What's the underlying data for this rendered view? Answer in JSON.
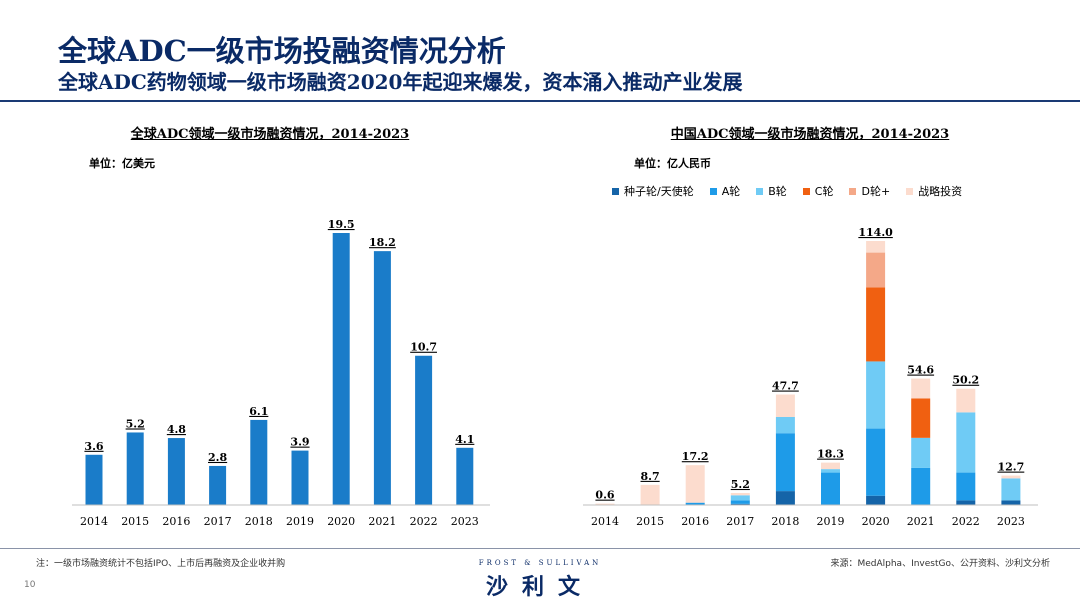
{
  "header": {
    "title": "全球ADC一级市场投融资情况分析",
    "subtitle": "全球ADC药物领域一级市场融资2020年起迎来爆发，资本涌入推动产业发展"
  },
  "chart_data": [
    {
      "type": "bar",
      "title": "全球ADC领域一级市场融资情况，2014-2023",
      "unit": "单位：亿美元",
      "categories": [
        "2014",
        "2015",
        "2016",
        "2017",
        "2018",
        "2019",
        "2020",
        "2021",
        "2022",
        "2023"
      ],
      "values": [
        3.6,
        5.2,
        4.8,
        2.8,
        6.1,
        3.9,
        19.5,
        18.2,
        10.7,
        4.1
      ],
      "color": "#1a7cc9",
      "legend": "none",
      "grid": false
    },
    {
      "type": "bar",
      "stacked": true,
      "title": "中国ADC领域一级市场融资情况，2014-2023",
      "unit": "单位：亿人民币",
      "categories": [
        "2014",
        "2015",
        "2016",
        "2017",
        "2018",
        "2019",
        "2020",
        "2021",
        "2022",
        "2023"
      ],
      "totals": [
        0.6,
        8.7,
        17.2,
        5.2,
        47.7,
        18.3,
        114.0,
        54.6,
        50.2,
        12.7
      ],
      "total_labels": [
        "0.6",
        "8.7",
        "17.2",
        "5.2",
        "47.7",
        "18.3",
        "114.0",
        "54.6",
        "50.2",
        "12.7"
      ],
      "series": [
        {
          "name": "种子轮/天使轮",
          "color": "#1564a8",
          "values": [
            0,
            0,
            0,
            0.5,
            6.0,
            0,
            4.0,
            0,
            2.0,
            2.0
          ]
        },
        {
          "name": "A轮",
          "color": "#1e9be8",
          "values": [
            0,
            0,
            1.0,
            1.5,
            25.0,
            14.0,
            29.0,
            16.0,
            12.0,
            0
          ]
        },
        {
          "name": "B轮",
          "color": "#6fcbf5",
          "values": [
            0,
            0,
            0,
            2.2,
            7.0,
            1.5,
            29.0,
            13.0,
            26.0,
            9.5
          ]
        },
        {
          "name": "C轮",
          "color": "#f06011",
          "values": [
            0,
            0,
            0,
            0,
            0,
            0,
            32.0,
            17.0,
            0,
            0
          ]
        },
        {
          "name": "D轮+",
          "color": "#f4a888",
          "values": [
            0,
            0,
            0,
            0,
            0,
            0,
            15.0,
            0,
            0,
            0
          ]
        },
        {
          "name": "战略投资",
          "color": "#fcdcce",
          "values": [
            0.6,
            8.7,
            16.2,
            1.0,
            9.7,
            2.8,
            5.0,
            8.6,
            10.2,
            1.2
          ]
        }
      ],
      "legend": "top",
      "grid": false
    }
  ],
  "footer": {
    "note": "注：一级市场融资统计不包括IPO、上市后再融资及企业收并购",
    "source": "来源：MedAlpha、InvestGo、公开资料、沙利文分析",
    "page": "10",
    "logo_en": "FROST & SULLIVAN",
    "logo_cn": "沙利文"
  }
}
